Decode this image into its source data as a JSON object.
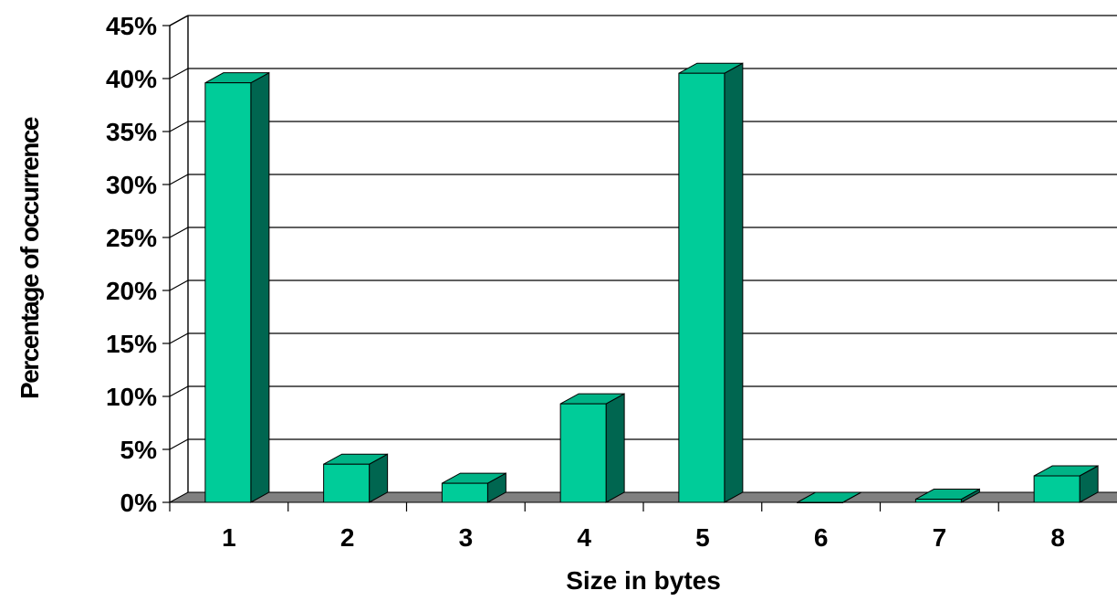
{
  "chart_data": {
    "type": "bar",
    "style": "3d-column",
    "categories": [
      "1",
      "2",
      "3",
      "4",
      "5",
      "6",
      "7",
      "8"
    ],
    "values": [
      39.6,
      3.6,
      1.8,
      9.3,
      40.5,
      0.0,
      0.3,
      2.5
    ],
    "xlabel": "Size in bytes",
    "ylabel": "Percentage of occurrence",
    "ylim": [
      0,
      45
    ],
    "yticks": [
      "0%",
      "5%",
      "10%",
      "15%",
      "20%",
      "25%",
      "30%",
      "35%",
      "40%",
      "45%"
    ],
    "grid": true,
    "legend": "none",
    "colors": {
      "bar_front": "#00cc99",
      "bar_side": "#006650",
      "bar_top": "#00b386",
      "floor": "#808080",
      "grid": "#000000"
    }
  }
}
